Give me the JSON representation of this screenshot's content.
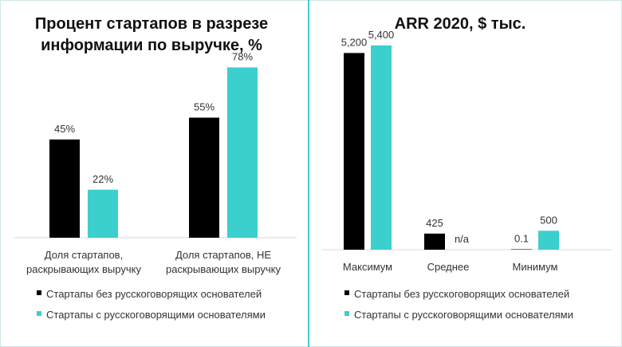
{
  "colors": {
    "black": "#000000",
    "teal": "#3bcfce",
    "axis": "#d9d9d9",
    "divider": "#3bcfce"
  },
  "legend": [
    {
      "label": "Стартапы без русскоговорящих основателей",
      "color": "#000000"
    },
    {
      "label": "Стартапы с русскоговорящими основателями",
      "color": "#3bcfce"
    }
  ],
  "chart_data": [
    {
      "type": "bar",
      "title_lines": [
        "Процент стартапов в разрезе",
        "информации по выручке, %"
      ],
      "category_lines": [
        [
          "Доля стартапов,",
          "раскрывающих выручку"
        ],
        [
          "Доля стартапов, НЕ",
          "раскрывающих выручку"
        ]
      ],
      "series": [
        {
          "name": "Стартапы без русскоговорящих основателей",
          "values": [
            45,
            55
          ],
          "labels": [
            "45%",
            "55%"
          ]
        },
        {
          "name": "Стартапы с русскоговорящими основателями",
          "values": [
            22,
            78
          ],
          "labels": [
            "22%",
            "78%"
          ]
        }
      ],
      "ylim": [
        0,
        95
      ]
    },
    {
      "type": "bar",
      "title_lines": [
        "ARR 2020, $ тыс."
      ],
      "category_lines": [
        [
          "Максимум"
        ],
        [
          "Среднее"
        ],
        [
          "Минимум"
        ]
      ],
      "series": [
        {
          "name": "Стартапы без русскоговорящих основателей",
          "values": [
            5200,
            425,
            0.1
          ],
          "labels": [
            "5,200",
            "425",
            "0.1"
          ]
        },
        {
          "name": "Стартапы с русскоговорящими основателями",
          "values": [
            5400,
            null,
            500
          ],
          "labels": [
            "5,400",
            "n/a",
            "500"
          ]
        }
      ],
      "ylim": [
        0,
        5800
      ]
    }
  ]
}
